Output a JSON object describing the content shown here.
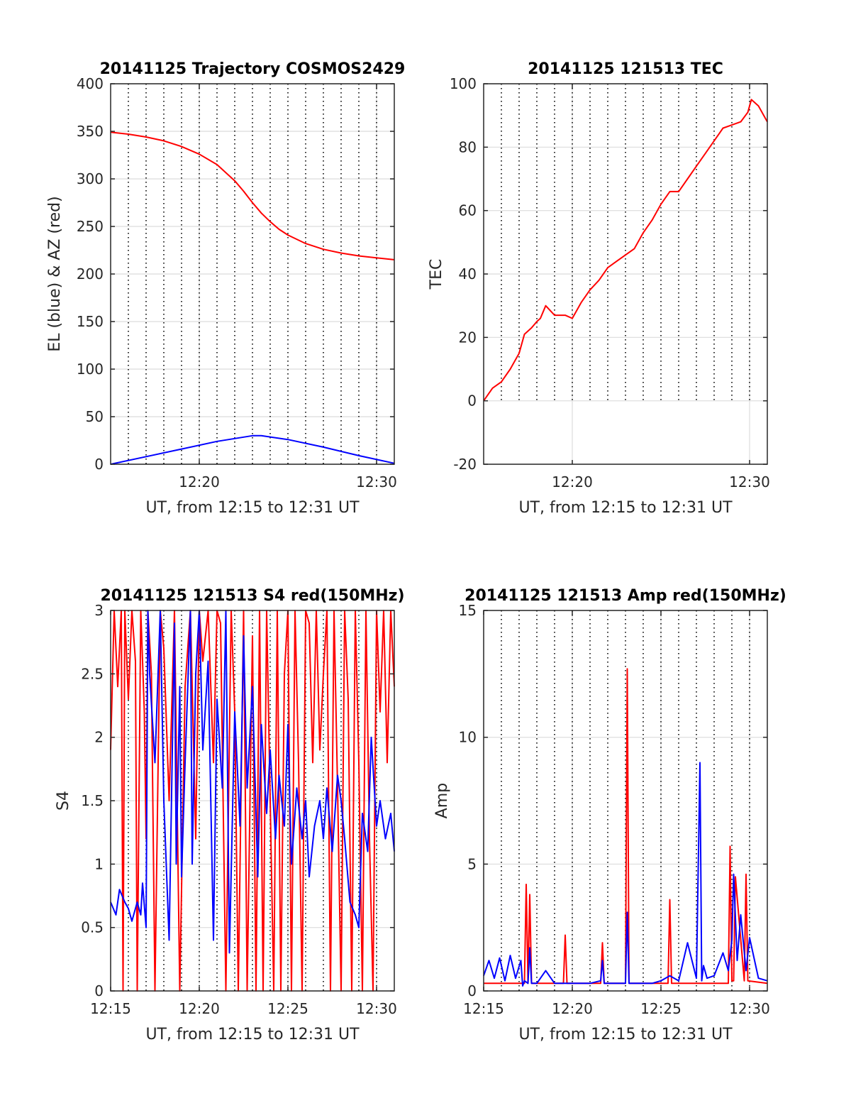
{
  "chart_data": [
    {
      "type": "line",
      "title": "20141125 Trajectory COSMOS2429",
      "xlabel": "UT, from 12:15 to 12:31 UT",
      "ylabel": "EL (blue) & AZ (red)",
      "xlim": [
        0,
        16
      ],
      "ylim": [
        0,
        400
      ],
      "yticks": [
        0,
        50,
        100,
        150,
        200,
        250,
        300,
        350,
        400
      ],
      "xticks": [
        {
          "x": 5,
          "label": "12:20"
        },
        {
          "x": 15,
          "label": "12:30"
        }
      ],
      "grid": "on",
      "series": [
        {
          "color": "#ff0000",
          "x": [
            0,
            1,
            2,
            3,
            4,
            5,
            6,
            7,
            7.5,
            8,
            8.5,
            9,
            9.5,
            10,
            11,
            12,
            13,
            14,
            15,
            16
          ],
          "y": [
            349,
            347,
            344,
            340,
            334,
            326,
            315,
            298,
            287,
            275,
            264,
            255,
            247,
            241,
            232,
            226,
            222,
            219,
            217,
            215
          ]
        },
        {
          "color": "#0000ff",
          "x": [
            0,
            2,
            4,
            6,
            8,
            8.5,
            10,
            12,
            14,
            16
          ],
          "y": [
            0,
            8,
            16,
            24,
            30,
            30,
            26,
            18,
            9,
            1
          ]
        }
      ]
    },
    {
      "type": "line",
      "title": "20141125 121513 TEC",
      "xlabel": "UT, from 12:15 to 12:31 UT",
      "ylabel": "TEC",
      "xlim": [
        0,
        16
      ],
      "ylim": [
        -20,
        100
      ],
      "yticks": [
        -20,
        0,
        20,
        40,
        60,
        80,
        100
      ],
      "xticks": [
        {
          "x": 5,
          "label": "12:20"
        },
        {
          "x": 15,
          "label": "12:30"
        }
      ],
      "grid": "on",
      "series": [
        {
          "color": "#ff0000",
          "x": [
            0,
            0.5,
            1,
            1.5,
            2,
            2.3,
            2.7,
            3.0,
            3.2,
            3.5,
            4.0,
            4.6,
            5.0,
            5.5,
            6.0,
            6.5,
            7.0,
            7.5,
            8.0,
            8.5,
            9.0,
            9.5,
            10.0,
            10.5,
            11.0,
            11.5,
            12.0,
            12.5,
            13.0,
            13.5,
            14.0,
            14.5,
            14.9,
            15.1,
            15.5,
            16.0
          ],
          "y": [
            0,
            4,
            6,
            10,
            15,
            21,
            23,
            25,
            26,
            30,
            27,
            27,
            26,
            31,
            35,
            38,
            42,
            44,
            46,
            48,
            53,
            57,
            62,
            66,
            66,
            70,
            74,
            78,
            82,
            86,
            87,
            88,
            91,
            95,
            93,
            88
          ]
        }
      ]
    },
    {
      "type": "line",
      "title": "20141125 121513 S4 red(150MHz)",
      "xlabel": "UT, from 12:15 to 12:31 UT",
      "ylabel": "S4",
      "xlim": [
        0,
        16
      ],
      "ylim": [
        0,
        3
      ],
      "yticks": [
        0,
        0.5,
        1,
        1.5,
        2,
        2.5,
        3
      ],
      "xticks": [
        {
          "x": 0,
          "label": "12:15"
        },
        {
          "x": 5,
          "label": "12:20"
        },
        {
          "x": 10,
          "label": "12:25"
        },
        {
          "x": 15,
          "label": "12:30"
        }
      ],
      "grid": "on",
      "series": [
        {
          "color": "#ff0000",
          "x": [
            0,
            0.2,
            0.4,
            0.6,
            0.7,
            0.8,
            1.0,
            1.2,
            1.4,
            1.5,
            1.7,
            1.9,
            2.0,
            2.1,
            2.3,
            2.5,
            2.8,
            3.0,
            3.3,
            3.6,
            3.9,
            4.2,
            4.5,
            4.8,
            5.0,
            5.2,
            5.5,
            5.8,
            6.0,
            6.2,
            6.5,
            6.8,
            7.0,
            7.2,
            7.5,
            7.7,
            8.0,
            8.2,
            8.4,
            8.6,
            8.8,
            9.0,
            9.2,
            9.4,
            9.6,
            9.8,
            10.0,
            10.2,
            10.4,
            10.6,
            10.8,
            11.0,
            11.2,
            11.4,
            11.6,
            11.8,
            12.0,
            12.2,
            12.4,
            12.6,
            12.8,
            13.0,
            13.2,
            13.4,
            13.6,
            13.8,
            14.0,
            14.2,
            14.4,
            14.6,
            14.8,
            15.0,
            15.2,
            15.4,
            15.6,
            15.8,
            16.0
          ],
          "y": [
            1.9,
            3,
            2.4,
            3,
            0,
            3,
            2.3,
            3,
            2.6,
            0,
            3,
            2.2,
            1.2,
            3,
            2.5,
            0,
            3,
            2.7,
            1.5,
            3,
            0,
            2.4,
            3,
            1.2,
            3,
            2.6,
            3,
            1.8,
            3,
            2.9,
            0,
            3,
            2.2,
            0,
            3,
            0,
            2.8,
            0,
            3,
            0,
            3,
            1.5,
            0,
            3,
            0,
            2.5,
            3,
            0,
            3,
            1.8,
            0,
            3,
            2.9,
            1.8,
            3,
            1.9,
            2.5,
            3,
            0,
            3,
            1.6,
            0,
            3,
            2.3,
            0,
            3,
            1.8,
            0,
            3,
            1.2,
            0,
            3,
            2.2,
            3,
            1.8,
            3,
            2.4
          ]
        },
        {
          "color": "#0000ff",
          "x": [
            0,
            0.3,
            0.5,
            0.8,
            1.0,
            1.2,
            1.5,
            1.7,
            1.8,
            2.0,
            2.1,
            2.2,
            2.5,
            2.8,
            3.0,
            3.3,
            3.6,
            3.7,
            3.9,
            4.0,
            4.2,
            4.5,
            4.6,
            4.8,
            5.0,
            5.2,
            5.5,
            5.8,
            6.0,
            6.3,
            6.5,
            6.7,
            7.0,
            7.3,
            7.5,
            7.7,
            8.0,
            8.3,
            8.5,
            8.8,
            9.0,
            9.3,
            9.5,
            9.8,
            10.0,
            10.2,
            10.5,
            10.8,
            11.0,
            11.2,
            11.5,
            11.8,
            12.0,
            12.2,
            12.5,
            12.8,
            13.0,
            13.2,
            13.5,
            13.8,
            14.0,
            14.2,
            14.5,
            14.7,
            15.0,
            15.2,
            15.5,
            15.8,
            16.0
          ],
          "y": [
            0.7,
            0.6,
            0.8,
            0.7,
            0.65,
            0.55,
            0.7,
            0.6,
            0.85,
            0.5,
            3,
            2.5,
            1.8,
            3,
            1.5,
            0.4,
            2.9,
            1.0,
            2.4,
            0.9,
            1.8,
            3,
            1.0,
            2.5,
            3,
            1.9,
            2.6,
            0.4,
            2.3,
            1.6,
            3,
            0.3,
            2.2,
            1.3,
            2.8,
            1.6,
            2.4,
            0.9,
            2.1,
            1.4,
            1.9,
            1.2,
            1.7,
            1.3,
            2.1,
            1.0,
            1.6,
            1.2,
            1.5,
            0.9,
            1.3,
            1.5,
            1.2,
            1.6,
            1.1,
            1.7,
            1.5,
            1.2,
            0.7,
            0.6,
            0.5,
            1.4,
            1.1,
            2.0,
            1.3,
            1.5,
            1.2,
            1.4,
            1.1
          ]
        }
      ]
    },
    {
      "type": "line",
      "title": "20141125 121513 Amp red(150MHz)",
      "xlabel": "UT, from 12:15 to 12:31 UT",
      "ylabel": "Amp",
      "xlim": [
        0,
        16
      ],
      "ylim": [
        0,
        15
      ],
      "yticks": [
        0,
        5,
        10,
        15
      ],
      "xticks": [
        {
          "x": 0,
          "label": "12:15"
        },
        {
          "x": 5,
          "label": "12:20"
        },
        {
          "x": 10,
          "label": "12:25"
        },
        {
          "x": 15,
          "label": "12:30"
        }
      ],
      "grid": "on",
      "series": [
        {
          "color": "#ff0000",
          "x": [
            0,
            2.3,
            2.4,
            2.5,
            2.6,
            2.7,
            4.5,
            4.6,
            4.7,
            5.5,
            6.6,
            6.7,
            6.8,
            8.0,
            8.1,
            8.2,
            10.4,
            10.5,
            10.6,
            13.8,
            13.9,
            14.0,
            14.1,
            14.2,
            14.7,
            14.8,
            14.9,
            16.0
          ],
          "y": [
            0.3,
            0.3,
            4.2,
            0.3,
            3.8,
            0.3,
            0.3,
            2.2,
            0.3,
            0.3,
            0.3,
            1.9,
            0.3,
            0.3,
            12.7,
            0.3,
            0.3,
            3.6,
            0.3,
            0.3,
            5.7,
            0.4,
            0.4,
            4.5,
            0.4,
            4.6,
            0.4,
            0.3
          ]
        },
        {
          "color": "#0000ff",
          "x": [
            0,
            0.3,
            0.6,
            0.9,
            1.2,
            1.5,
            1.8,
            2.1,
            2.2,
            2.3,
            2.5,
            2.6,
            2.7,
            3.0,
            3.5,
            4.0,
            4.5,
            5.0,
            5.5,
            6.0,
            6.6,
            6.7,
            6.8,
            7.5,
            8.0,
            8.1,
            8.2,
            9.0,
            9.5,
            10.0,
            10.5,
            11.0,
            11.5,
            12.0,
            12.2,
            12.3,
            12.4,
            12.6,
            13.0,
            13.5,
            13.8,
            14.0,
            14.1,
            14.3,
            14.5,
            14.8,
            15.0,
            15.5,
            16.0
          ],
          "y": [
            0.6,
            1.2,
            0.5,
            1.3,
            0.4,
            1.4,
            0.5,
            1.2,
            0.2,
            0.4,
            0.3,
            1.7,
            0.3,
            0.3,
            0.8,
            0.3,
            0.3,
            0.3,
            0.3,
            0.3,
            0.4,
            1.2,
            0.3,
            0.3,
            0.3,
            3.1,
            0.3,
            0.3,
            0.3,
            0.4,
            0.6,
            0.4,
            1.9,
            0.5,
            9.0,
            0.4,
            1.0,
            0.5,
            0.6,
            1.5,
            0.8,
            2.0,
            4.6,
            1.2,
            3.0,
            0.8,
            2.1,
            0.5,
            0.4
          ]
        }
      ]
    }
  ]
}
